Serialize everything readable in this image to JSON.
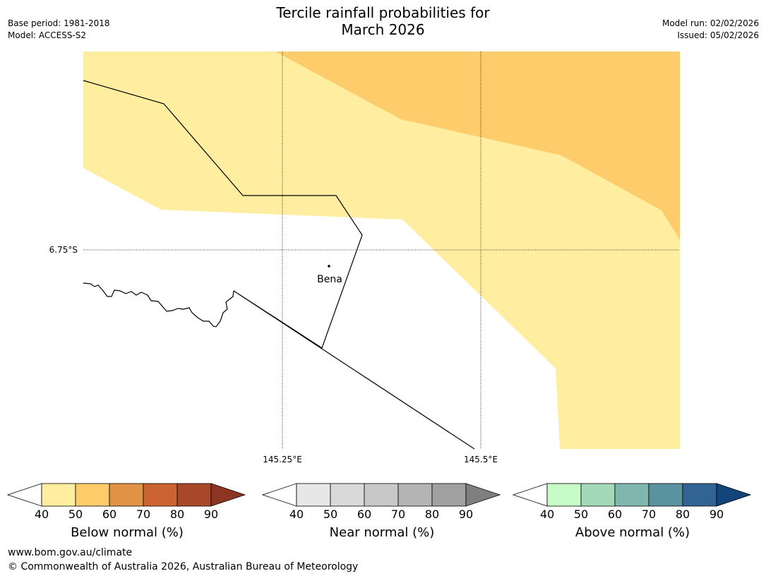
{
  "header": {
    "title_line1": "Tercile rainfall probabilities for",
    "title_line2": "March 2026",
    "base_period": "Base period: 1981-2018",
    "model": "Model: ACCESS-S2",
    "model_run": "Model run: 02/02/2026",
    "issued": "Issued: 05/02/2026"
  },
  "map": {
    "latitude_label": "6.75°S",
    "longitude_labels": [
      "145.25°E",
      "145.5°E"
    ],
    "place_label": "Bena",
    "colors": {
      "band_40_50": "#ffeda0",
      "band_50_60": "#fecc6a",
      "background": "#ffffff"
    }
  },
  "legends": [
    {
      "label": "Below normal (%)",
      "ticks": [
        "40",
        "50",
        "60",
        "70",
        "80",
        "90"
      ],
      "colors": [
        "#ffffff",
        "#ffeda0",
        "#fecc6a",
        "#e19345",
        "#cb6333",
        "#a94828",
        "#8b3522"
      ]
    },
    {
      "label": "Near normal (%)",
      "ticks": [
        "40",
        "50",
        "60",
        "70",
        "80",
        "90"
      ],
      "colors": [
        "#ffffff",
        "#e7e7e7",
        "#d9d9d9",
        "#c8c8c8",
        "#b4b4b4",
        "#a0a0a0",
        "#7f7f7f"
      ]
    },
    {
      "label": "Above normal (%)",
      "ticks": [
        "40",
        "50",
        "60",
        "70",
        "80",
        "90"
      ],
      "colors": [
        "#ffffff",
        "#c7fcc7",
        "#a3d9b9",
        "#7fb6ad",
        "#5a92a0",
        "#316393",
        "#13457d"
      ]
    }
  ],
  "footer": {
    "url": "www.bom.gov.au/climate",
    "copyright": "© Commonwealth of Australia 2026, Australian Bureau of Meteorology"
  }
}
